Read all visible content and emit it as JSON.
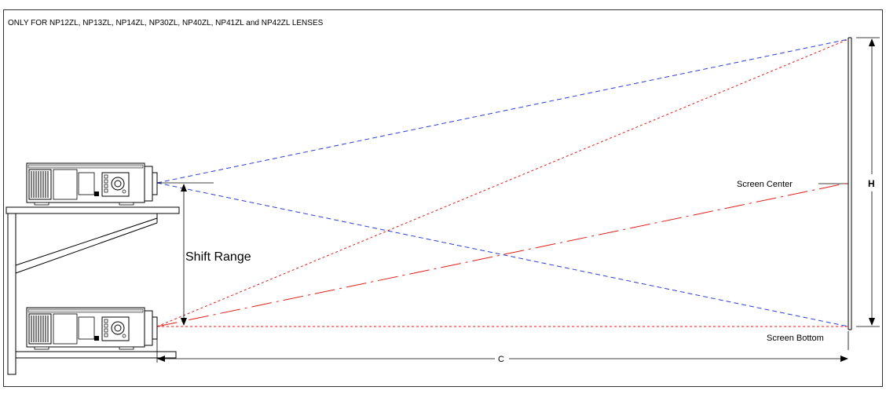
{
  "header": {
    "note": "ONLY FOR NP12ZL, NP13ZL, NP14ZL, NP30ZL, NP40ZL, NP41ZL and NP42ZL LENSES"
  },
  "labels": {
    "screen_center": "Screen Center",
    "screen_bottom": "Screen Bottom",
    "shift_range": "Shift Range",
    "height": "H",
    "distance": "C"
  },
  "colors": {
    "blue_rays": "#2a3fd6",
    "red_rays": "#e0201a",
    "outline": "#000000",
    "frame": "#333333"
  },
  "icons": {
    "projector": "projector-icon"
  }
}
